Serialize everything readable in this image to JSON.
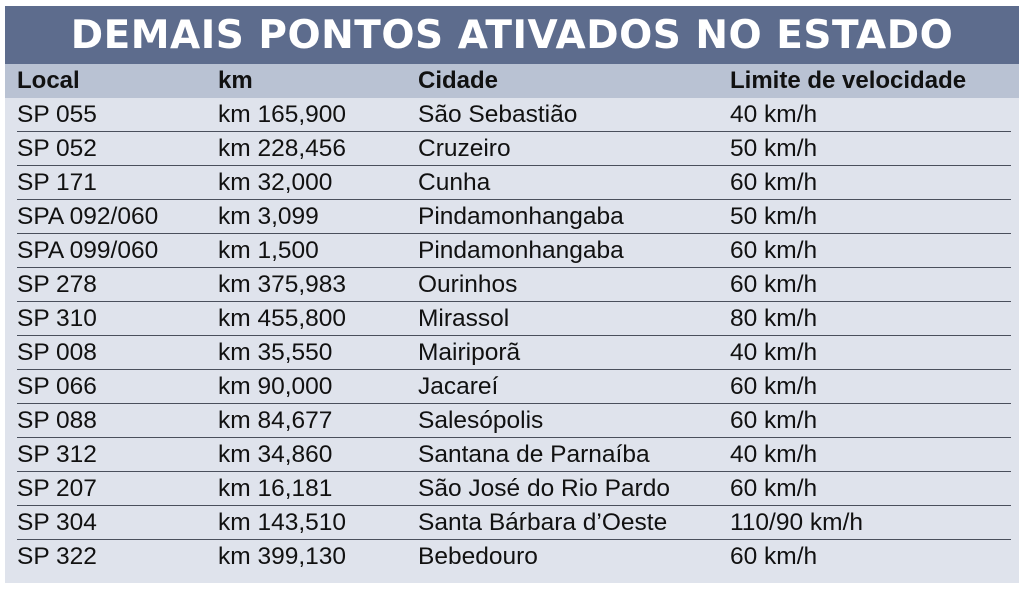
{
  "title": "DEMAIS PONTOS ATIVADOS NO ESTADO",
  "columns": [
    "Local",
    "km",
    "Cidade",
    "Limite de velocidade"
  ],
  "rows": [
    [
      "SP 055",
      "km 165,900",
      "São Sebastião",
      "40 km/h"
    ],
    [
      "SP 052",
      "km 228,456",
      "Cruzeiro",
      "50 km/h"
    ],
    [
      "SP 171",
      "km 32,000",
      "Cunha",
      "60 km/h"
    ],
    [
      "SPA 092/060",
      "km 3,099",
      "Pindamonhangaba",
      "50 km/h"
    ],
    [
      "SPA 099/060",
      "km 1,500",
      "Pindamonhangaba",
      "60 km/h"
    ],
    [
      "SP 278",
      "km 375,983",
      "Ourinhos",
      "60 km/h"
    ],
    [
      "SP 310",
      "km 455,800",
      "Mirassol",
      "80 km/h"
    ],
    [
      "SP 008",
      "km 35,550",
      "Mairiporã",
      "40 km/h"
    ],
    [
      "SP 066",
      "km 90,000",
      "Jacareí",
      "60 km/h"
    ],
    [
      "SP 088",
      "km 84,677",
      "Salesópolis",
      "60 km/h"
    ],
    [
      "SP 312",
      "km 34,860",
      "Santana de Parnaíba",
      "40 km/h"
    ],
    [
      "SP 207",
      "km 16,181",
      "São José do Rio Pardo",
      "60 km/h"
    ],
    [
      "SP 304",
      "km 143,510",
      "Santa Bárbara d’Oeste",
      "110/90 km/h"
    ],
    [
      "SP 322",
      "km 399,130",
      "Bebedouro",
      "60 km/h"
    ]
  ],
  "colors": {
    "title_bar": "#5d6c8d",
    "header_row": "#b9c2d3",
    "table_bg": "#dfe3ec",
    "text": "#111111"
  }
}
